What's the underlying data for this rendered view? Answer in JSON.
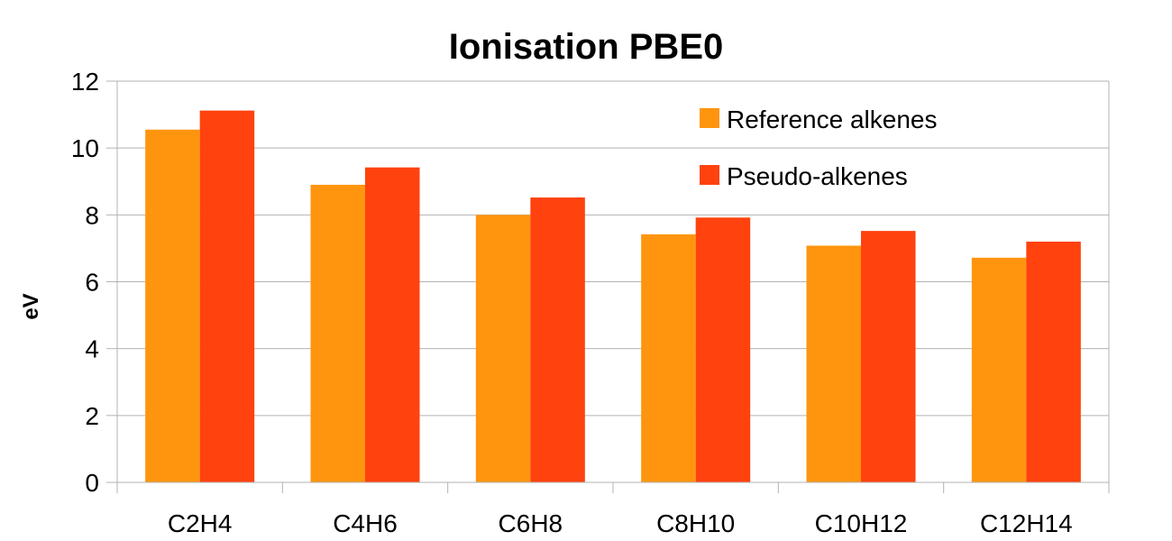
{
  "chart_data": {
    "type": "bar",
    "title": "Ionisation PBE0",
    "xlabel": "",
    "ylabel": "eV",
    "ylim": [
      0,
      12
    ],
    "yticks": [
      0,
      2,
      4,
      6,
      8,
      10,
      12
    ],
    "categories": [
      "C2H4",
      "C4H6",
      "C6H8",
      "C8H10",
      "C10H12",
      "C12H14"
    ],
    "series": [
      {
        "name": "Reference alkenes",
        "color": "#FF950E",
        "values": [
          10.55,
          8.9,
          8.0,
          7.42,
          7.08,
          6.72
        ]
      },
      {
        "name": "Pseudo-alkenes",
        "color": "#FF420E",
        "values": [
          11.12,
          9.42,
          8.52,
          7.92,
          7.52,
          7.2
        ]
      }
    ],
    "grid": true,
    "legend_position": "top-right"
  }
}
